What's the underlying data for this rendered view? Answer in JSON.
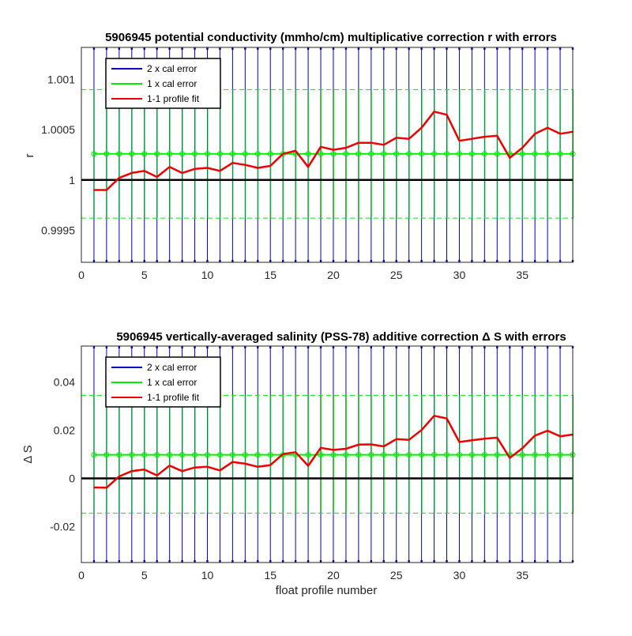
{
  "colors": {
    "cal2": "#0000cc",
    "cal1": "#00ee00",
    "fit": "#ee0000",
    "baseline": "#000000"
  },
  "shared": {
    "xlabel": "float profile number",
    "xlim": [
      0,
      39
    ],
    "xticks": [
      0,
      5,
      10,
      15,
      20,
      25,
      30,
      35
    ],
    "legend": [
      "2 x cal error",
      "1 x cal error",
      "1-1 profile fit"
    ],
    "legend_position": "top-left"
  },
  "chart_data": [
    {
      "type": "line",
      "title": "5906945 potential conductivity (mmho/cm) multiplicative correction r with errors",
      "xlabel": "",
      "ylabel": "r",
      "xlim": [
        0,
        39
      ],
      "ylim": [
        0.99918,
        1.00132
      ],
      "yticks": [
        0.9995,
        1,
        1.0005,
        1.001
      ],
      "ytick_labels": [
        "0.9995",
        "1",
        "1.0005",
        "1.001"
      ],
      "baseline": 1.0,
      "cal1_center": 1.00026,
      "cal1_band": [
        0.99962,
        1.0009
      ],
      "cal2_band": [
        0.99918,
        1.00132
      ],
      "x": [
        1,
        2,
        3,
        4,
        5,
        6,
        7,
        8,
        9,
        10,
        11,
        12,
        13,
        14,
        15,
        16,
        17,
        18,
        19,
        20,
        21,
        22,
        23,
        24,
        25,
        26,
        27,
        28,
        29,
        30,
        31,
        32,
        33,
        34,
        35,
        36,
        37,
        38,
        39
      ],
      "fit": [
        0.9999,
        0.9999,
        1.00002,
        1.00007,
        1.00009,
        1.00003,
        1.00013,
        1.00007,
        1.00011,
        1.00012,
        1.00009,
        1.00017,
        1.00015,
        1.00012,
        1.00014,
        1.00026,
        1.00029,
        1.00013,
        1.00033,
        1.0003,
        1.00032,
        1.00037,
        1.00037,
        1.00035,
        1.00042,
        1.00041,
        1.00052,
        1.00068,
        1.00065,
        1.00039,
        1.00041,
        1.00043,
        1.00044,
        1.00022,
        1.00032,
        1.00046,
        1.00052,
        1.00046,
        1.00048
      ]
    },
    {
      "type": "line",
      "title": "5906945 vertically-averaged salinity (PSS-78) additive correction Δ S with errors",
      "xlabel": "float profile number",
      "ylabel": "Δ S",
      "xlim": [
        0,
        39
      ],
      "ylim": [
        -0.035,
        0.055
      ],
      "yticks": [
        -0.02,
        0,
        0.02,
        0.04
      ],
      "ytick_labels": [
        "-0.02",
        "0",
        "0.02",
        "0.04"
      ],
      "baseline": 0,
      "cal1_center": 0.0098,
      "cal1_band": [
        -0.0145,
        0.0345
      ],
      "cal2_band": [
        -0.035,
        0.055
      ],
      "x": [
        1,
        2,
        3,
        4,
        5,
        6,
        7,
        8,
        9,
        10,
        11,
        12,
        13,
        14,
        15,
        16,
        17,
        18,
        19,
        20,
        21,
        22,
        23,
        24,
        25,
        26,
        27,
        28,
        29,
        30,
        31,
        32,
        33,
        34,
        35,
        36,
        37,
        38,
        39
      ],
      "fit": [
        -0.0038,
        -0.0039,
        0.0008,
        0.003,
        0.0037,
        0.0012,
        0.0053,
        0.003,
        0.0045,
        0.0048,
        0.0033,
        0.0068,
        0.0061,
        0.0048,
        0.0055,
        0.0101,
        0.0109,
        0.0052,
        0.0127,
        0.0118,
        0.0123,
        0.014,
        0.0141,
        0.0133,
        0.0163,
        0.016,
        0.0201,
        0.026,
        0.0249,
        0.0151,
        0.0158,
        0.0165,
        0.0169,
        0.0085,
        0.0125,
        0.0178,
        0.0198,
        0.0175,
        0.0182
      ]
    }
  ]
}
